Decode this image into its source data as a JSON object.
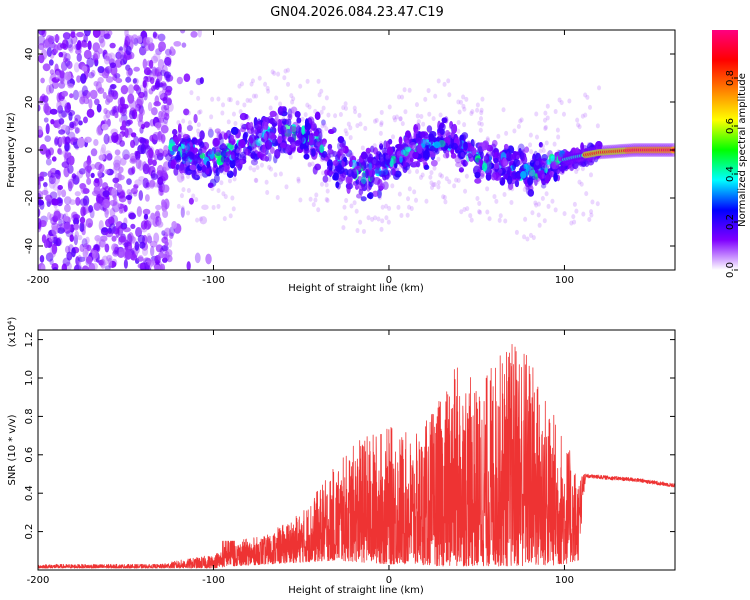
{
  "title": "GN04.2026.084.23.47.C19",
  "chart_data": [
    {
      "type": "heatmap",
      "name": "spectrogram",
      "xlabel": "Height of straight line (km)",
      "ylabel": "Frequency (Hz)",
      "xlim": [
        -200,
        163
      ],
      "ylim": [
        -50,
        50
      ],
      "xticks": [
        -200,
        -100,
        0,
        100
      ],
      "yticks": [
        -40,
        -20,
        0,
        20,
        40
      ],
      "colorbar": {
        "label": "Normalized spectral amplitude",
        "range": [
          0,
          1
        ],
        "ticks": [
          "0.0",
          "0.2",
          "0.4",
          "0.6",
          "0.8"
        ],
        "colors": [
          "#ffffff",
          "#8000ff",
          "#0000ff",
          "#00ffff",
          "#00ff00",
          "#ffff00",
          "#ff8000",
          "#ff0000",
          "#ff0080"
        ]
      },
      "ridge": [
        {
          "x": -120,
          "f": 0
        },
        {
          "x": -100,
          "f": -5
        },
        {
          "x": -80,
          "f": 3
        },
        {
          "x": -60,
          "f": 8
        },
        {
          "x": -45,
          "f": 5
        },
        {
          "x": -30,
          "f": -5
        },
        {
          "x": -15,
          "f": -10
        },
        {
          "x": 0,
          "f": -5
        },
        {
          "x": 15,
          "f": 0
        },
        {
          "x": 30,
          "f": 5
        },
        {
          "x": 40,
          "f": 2
        },
        {
          "x": 50,
          "f": -5
        },
        {
          "x": 65,
          "f": -5
        },
        {
          "x": 80,
          "f": -10
        },
        {
          "x": 95,
          "f": -5
        },
        {
          "x": 105,
          "f": -3
        },
        {
          "x": 120,
          "f": -1
        },
        {
          "x": 140,
          "f": 0
        },
        {
          "x": 163,
          "f": 0
        }
      ]
    },
    {
      "type": "line",
      "name": "snr",
      "xlabel": "Height of straight line (km)",
      "ylabel": "SNR (10 * v/v)",
      "multiplier_label": "(x10⁴)",
      "xlim": [
        -200,
        163
      ],
      "ylim": [
        0,
        1.25
      ],
      "xticks": [
        -200,
        -100,
        0,
        100
      ],
      "yticks": [
        "0.2",
        "0.4",
        "0.6",
        "0.8",
        "1.0",
        "1.2"
      ],
      "color": "#ee3333",
      "envelope": [
        {
          "x": -200,
          "baseline": 0.01,
          "peak": 0.03
        },
        {
          "x": -130,
          "baseline": 0.01,
          "peak": 0.03
        },
        {
          "x": -120,
          "baseline": 0.01,
          "peak": 0.05
        },
        {
          "x": -100,
          "baseline": 0.01,
          "peak": 0.08
        },
        {
          "x": -90,
          "baseline": 0.02,
          "peak": 0.15
        },
        {
          "x": -70,
          "baseline": 0.03,
          "peak": 0.18
        },
        {
          "x": -50,
          "baseline": 0.04,
          "peak": 0.3
        },
        {
          "x": -30,
          "baseline": 0.05,
          "peak": 0.55
        },
        {
          "x": -15,
          "baseline": 0.04,
          "peak": 0.7
        },
        {
          "x": 0,
          "baseline": 0.03,
          "peak": 0.75
        },
        {
          "x": 15,
          "baseline": 0.03,
          "peak": 0.7
        },
        {
          "x": 30,
          "baseline": 0.02,
          "peak": 0.9
        },
        {
          "x": 40,
          "baseline": 0.02,
          "peak": 1.1
        },
        {
          "x": 50,
          "baseline": 0.02,
          "peak": 0.95
        },
        {
          "x": 60,
          "baseline": 0.02,
          "peak": 1.1
        },
        {
          "x": 75,
          "baseline": 0.02,
          "peak": 1.25
        },
        {
          "x": 90,
          "baseline": 0.02,
          "peak": 0.9
        },
        {
          "x": 100,
          "baseline": 0.03,
          "peak": 0.7
        },
        {
          "x": 108,
          "baseline": 0.05,
          "peak": 0.5
        },
        {
          "x": 112,
          "baseline": 0.48,
          "peak": 0.5
        },
        {
          "x": 140,
          "baseline": 0.46,
          "peak": 0.48
        },
        {
          "x": 163,
          "baseline": 0.43,
          "peak": 0.45
        }
      ]
    }
  ]
}
